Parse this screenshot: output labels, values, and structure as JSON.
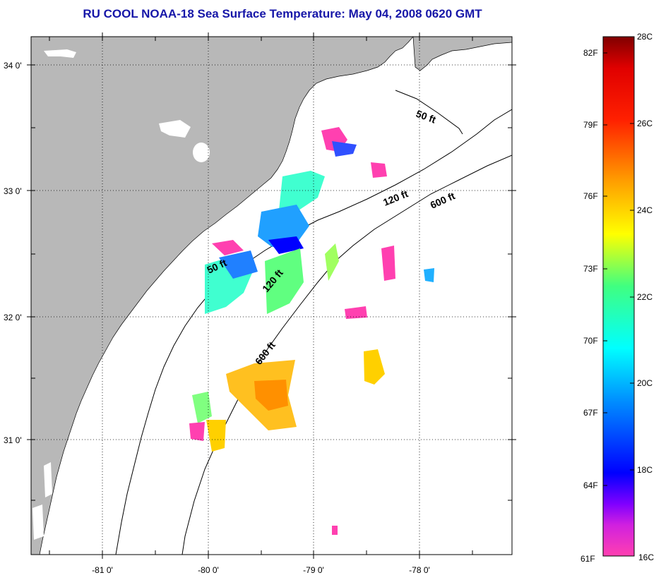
{
  "title": "RU COOL  NOAA-18  Sea Surface Temperature:  May 04, 2008 0620 GMT",
  "map": {
    "lat_labels": [
      "34 0'",
      "33 0'",
      "32 0'",
      "31 0'"
    ],
    "lon_labels": [
      "-81 0'",
      "-80 0'",
      "-79 0'",
      "-78 0'"
    ],
    "depth_labels": [
      "50 ft",
      "120 ft",
      "600 ft",
      "50 ft",
      "120 ft",
      "600 ft"
    ],
    "land_color": "#b8b8b8",
    "grid": "dotted"
  },
  "colorbar": {
    "fahrenheit_labels": [
      "82F",
      "79F",
      "76F",
      "73F",
      "70F",
      "67F",
      "64F",
      "61F"
    ],
    "celsius_labels": [
      "28C",
      "26C",
      "24C",
      "22C",
      "20C",
      "18C",
      "16C"
    ],
    "colors": [
      "#ff40b0",
      "#b000ff",
      "#0000ff",
      "#0090ff",
      "#00ffff",
      "#40ff80",
      "#ffff00",
      "#ffa000",
      "#ff3000",
      "#ff0000",
      "#800000"
    ]
  }
}
